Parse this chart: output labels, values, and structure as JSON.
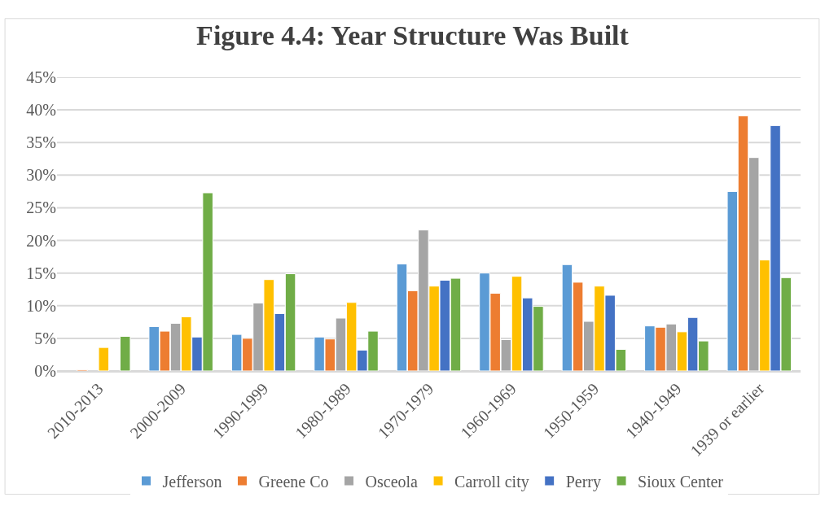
{
  "chart_data": {
    "type": "bar",
    "title": "Figure 4.4: Year Structure Was Built",
    "categories": [
      "2010-2013",
      "2000-2009",
      "1990-1999",
      "1980-1989",
      "1970-1979",
      "1960-1969",
      "1950-1959",
      "1940-1949",
      "1939 or earlier"
    ],
    "series": [
      {
        "name": "Jefferson",
        "color": "#5b9bd5",
        "values": [
          null,
          6.8,
          5.6,
          5.2,
          16.4,
          15.0,
          16.3,
          6.9,
          27.5
        ]
      },
      {
        "name": "Greene Co",
        "color": "#ed7d31",
        "values": [
          0.2,
          6.1,
          5.0,
          4.9,
          12.3,
          11.9,
          13.6,
          6.7,
          39.1
        ]
      },
      {
        "name": "Osceola",
        "color": "#a5a5a5",
        "values": [
          null,
          7.3,
          10.4,
          8.1,
          21.6,
          4.8,
          7.6,
          7.2,
          32.7
        ]
      },
      {
        "name": "Carroll city",
        "color": "#ffc000",
        "values": [
          3.6,
          8.3,
          14.0,
          10.5,
          13.0,
          14.5,
          13.0,
          6.0,
          17.0
        ]
      },
      {
        "name": "Perry",
        "color": "#4472c4",
        "values": [
          null,
          5.2,
          8.8,
          3.2,
          13.9,
          11.2,
          11.6,
          8.2,
          37.6
        ]
      },
      {
        "name": "Sioux Center",
        "color": "#70ad47",
        "values": [
          5.3,
          27.3,
          14.9,
          6.1,
          14.2,
          9.9,
          3.3,
          4.6,
          14.3
        ]
      }
    ],
    "ylim": [
      0,
      45
    ],
    "yticks": [
      {
        "value": 0,
        "label": "0%"
      },
      {
        "value": 5,
        "label": "5%"
      },
      {
        "value": 10,
        "label": "10%"
      },
      {
        "value": 15,
        "label": "15%"
      },
      {
        "value": 20,
        "label": "20%"
      },
      {
        "value": 25,
        "label": "25%"
      },
      {
        "value": 30,
        "label": "30%"
      },
      {
        "value": 35,
        "label": "35%"
      },
      {
        "value": 40,
        "label": "40%"
      },
      {
        "value": 45,
        "label": "45%"
      }
    ],
    "grid": "y",
    "legend": "bottom"
  }
}
